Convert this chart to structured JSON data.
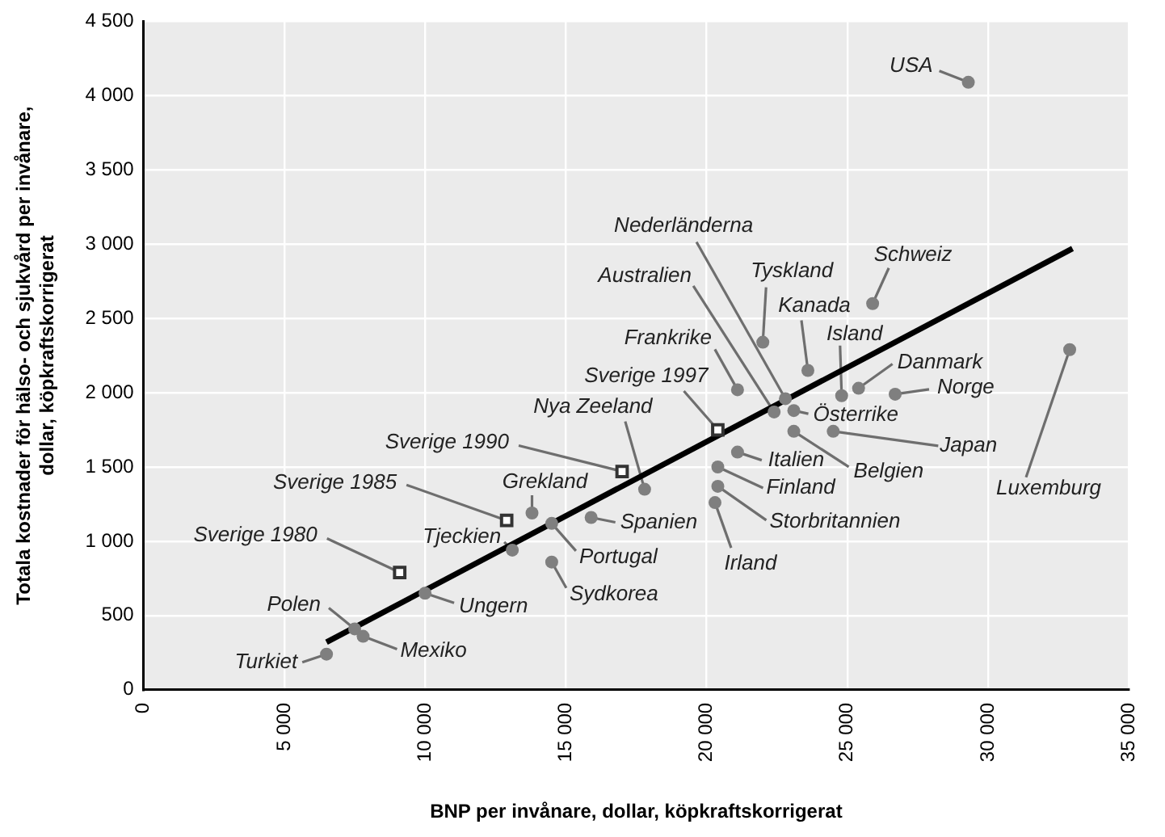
{
  "chart_data": {
    "type": "scatter",
    "xlabel": "BNP per invånare, dollar, köpkraftskorrigerat",
    "ylabel": "Totala kostnader för hälso- och sjukvård per invånare, dollar, köpkraftskorrigerat",
    "xlim": [
      0,
      35000
    ],
    "xticks": [
      0,
      {
        "value": 5000,
        "label": "5 000"
      },
      {
        "value": 10000,
        "label": "10 000"
      },
      {
        "value": 15000,
        "label": "15 000"
      },
      {
        "value": 20000,
        "label": "20 000"
      },
      {
        "value": 25000,
        "label": "25 000"
      },
      {
        "value": 30000,
        "label": "30 000"
      },
      {
        "value": 35000,
        "label": "35 000"
      }
    ],
    "ylim": [
      0,
      4500
    ],
    "yticks": [
      0,
      500,
      {
        "value": 1000,
        "label": "1 000"
      },
      {
        "value": 1500,
        "label": "1 500"
      },
      {
        "value": 2000,
        "label": "2 000"
      },
      {
        "value": 2500,
        "label": "2 500"
      },
      {
        "value": 3000,
        "label": "3 000"
      },
      {
        "value": 3500,
        "label": "3 500"
      },
      {
        "value": 4000,
        "label": "4 000"
      },
      {
        "value": 4500,
        "label": "4 500"
      }
    ],
    "grid": true,
    "legend": false,
    "series": [
      {
        "type": "scatter",
        "marker": "circle",
        "color": "#7f7f7f",
        "x": [
          29300,
          22800,
          22400,
          22000,
          23600,
          25900,
          24800,
          25400,
          26700,
          23100,
          24500,
          23100,
          21100,
          21100,
          20400,
          20400,
          20300,
          32900,
          17800,
          13800,
          15900,
          14500,
          13100,
          14500,
          10000,
          7500,
          7800,
          6500
        ],
        "values": [
          4090,
          1960,
          1870,
          2340,
          2150,
          2600,
          1980,
          2030,
          1990,
          1880,
          1740,
          1740,
          2020,
          1600,
          1500,
          1370,
          1260,
          2290,
          1350,
          1190,
          1160,
          1120,
          940,
          860,
          650,
          410,
          360,
          240
        ]
      },
      {
        "type": "scatter",
        "marker": "square",
        "color": "#333333",
        "x": [
          9100,
          12900,
          17000,
          20400
        ],
        "values": [
          790,
          1140,
          1470,
          1750
        ]
      },
      {
        "type": "line",
        "marker": "none",
        "color": "#000000",
        "x": [
          6500,
          33000
        ],
        "values": [
          320,
          2970
        ]
      }
    ],
    "annotations": [
      {
        "text": "USA",
        "x": 29300,
        "y": 4090
      },
      {
        "text": "Nederländerna",
        "x": 22800,
        "y": 1960
      },
      {
        "text": "Australien",
        "x": 22400,
        "y": 1870
      },
      {
        "text": "Tyskland",
        "x": 22000,
        "y": 2340
      },
      {
        "text": "Kanada",
        "x": 23600,
        "y": 2150
      },
      {
        "text": "Schweiz",
        "x": 25900,
        "y": 2600
      },
      {
        "text": "Island",
        "x": 24800,
        "y": 1980
      },
      {
        "text": "Danmark",
        "x": 25400,
        "y": 2030
      },
      {
        "text": "Norge",
        "x": 26700,
        "y": 1990
      },
      {
        "text": "Österrike",
        "x": 23100,
        "y": 1880
      },
      {
        "text": "Japan",
        "x": 24500,
        "y": 1740
      },
      {
        "text": "Belgien",
        "x": 23100,
        "y": 1740
      },
      {
        "text": "Frankrike",
        "x": 21100,
        "y": 2020
      },
      {
        "text": "Italien",
        "x": 21100,
        "y": 1600
      },
      {
        "text": "Finland",
        "x": 20400,
        "y": 1500
      },
      {
        "text": "Storbritannien",
        "x": 20400,
        "y": 1370
      },
      {
        "text": "Irland",
        "x": 20300,
        "y": 1260
      },
      {
        "text": "Luxemburg",
        "x": 32900,
        "y": 2290
      },
      {
        "text": "Nya Zeeland",
        "x": 17800,
        "y": 1350
      },
      {
        "text": "Grekland",
        "x": 13800,
        "y": 1190
      },
      {
        "text": "Spanien",
        "x": 15900,
        "y": 1160
      },
      {
        "text": "Portugal",
        "x": 14500,
        "y": 1120
      },
      {
        "text": "Tjeckien",
        "x": 13100,
        "y": 940
      },
      {
        "text": "Sydkorea",
        "x": 14500,
        "y": 860
      },
      {
        "text": "Ungern",
        "x": 10000,
        "y": 650
      },
      {
        "text": "Polen",
        "x": 7500,
        "y": 410
      },
      {
        "text": "Mexiko",
        "x": 7800,
        "y": 360
      },
      {
        "text": "Turkiet",
        "x": 6500,
        "y": 240
      },
      {
        "text": "Sverige 1980",
        "x": 9100,
        "y": 790
      },
      {
        "text": "Sverige 1985",
        "x": 12900,
        "y": 1140
      },
      {
        "text": "Sverige 1990",
        "x": 17000,
        "y": 1470
      },
      {
        "text": "Sverige 1997",
        "x": 20400,
        "y": 1750
      }
    ]
  }
}
